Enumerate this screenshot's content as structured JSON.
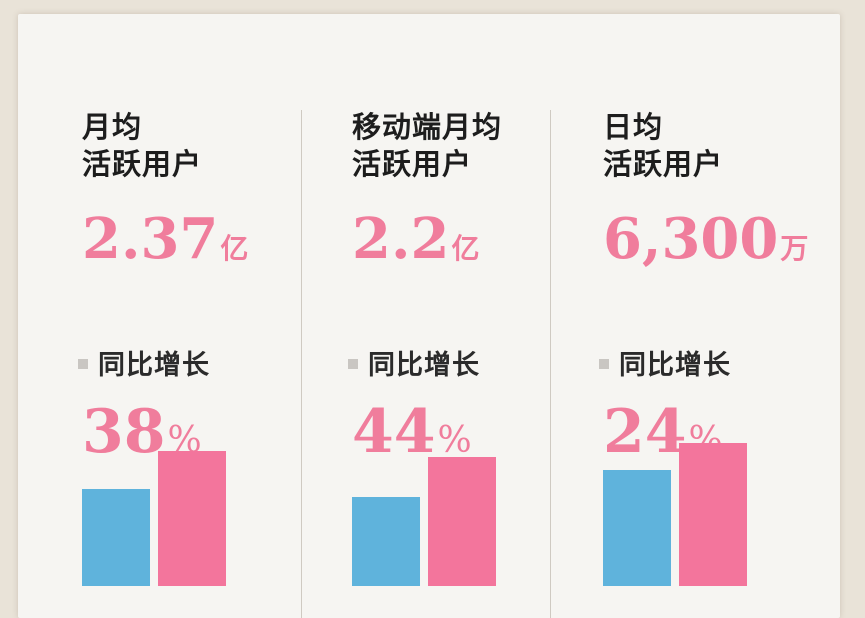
{
  "colors": {
    "accent_pink": "#f07d9c",
    "bar_blue": "#5fb3dc",
    "bar_pink": "#f3759c",
    "background": "#f6f5f2"
  },
  "panels": [
    {
      "title": "月均\n活跃用户",
      "value": "2.37",
      "unit": "亿",
      "growth_label": "同比增长",
      "growth": "38",
      "pct": "%"
    },
    {
      "title": "移动端月均\n活跃用户",
      "value": "2.2",
      "unit": "亿",
      "growth_label": "同比增长",
      "growth": "44",
      "pct": "%"
    },
    {
      "title": "日均\n活跃用户",
      "value": "6,300",
      "unit": "万",
      "growth_label": "同比增长",
      "growth": "24",
      "pct": "%"
    }
  ],
  "chart_data": [
    {
      "type": "bar",
      "categories": [
        "",
        ""
      ],
      "values": [
        0.72,
        1.0
      ]
    },
    {
      "type": "bar",
      "categories": [
        "",
        ""
      ],
      "values": [
        0.69,
        1.0
      ]
    },
    {
      "type": "bar",
      "categories": [
        "",
        ""
      ],
      "values": [
        0.81,
        1.0
      ]
    }
  ]
}
